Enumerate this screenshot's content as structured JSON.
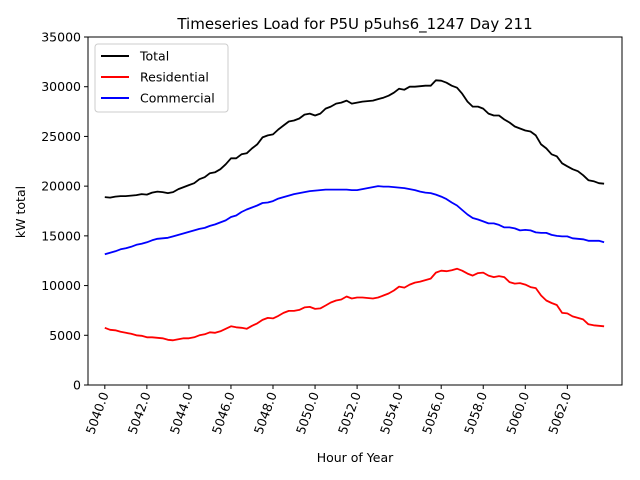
{
  "chart_data": {
    "type": "line",
    "title": "Timeseries Load for P5U p5uhs6_1247  Day 211",
    "xlabel": "Hour of Year",
    "ylabel": "kW total",
    "xlim": [
      5039.2,
      5064.6
    ],
    "ylim": [
      0,
      35000
    ],
    "xticks": [
      5040,
      5042,
      5044,
      5046,
      5048,
      5050,
      5052,
      5054,
      5056,
      5058,
      5060,
      5062
    ],
    "xtick_labels": [
      "5040.0",
      "5042.0",
      "5044.0",
      "5046.0",
      "5048.0",
      "5050.0",
      "5052.0",
      "5054.0",
      "5056.0",
      "5058.0",
      "5060.0",
      "5062.0"
    ],
    "yticks": [
      0,
      5000,
      10000,
      15000,
      20000,
      25000,
      30000,
      35000
    ],
    "ytick_labels": [
      "0",
      "5000",
      "10000",
      "15000",
      "20000",
      "25000",
      "30000",
      "35000"
    ],
    "grid": false,
    "legend_position": "top-left",
    "x": [
      5040.0,
      5040.25,
      5040.5,
      5040.75,
      5041.0,
      5041.25,
      5041.5,
      5041.75,
      5042.0,
      5042.25,
      5042.5,
      5042.75,
      5043.0,
      5043.25,
      5043.5,
      5043.75,
      5044.0,
      5044.25,
      5044.5,
      5044.75,
      5045.0,
      5045.25,
      5045.5,
      5045.75,
      5046.0,
      5046.25,
      5046.5,
      5046.75,
      5047.0,
      5047.25,
      5047.5,
      5047.75,
      5048.0,
      5048.25,
      5048.5,
      5048.75,
      5049.0,
      5049.25,
      5049.5,
      5049.75,
      5050.0,
      5050.25,
      5050.5,
      5050.75,
      5051.0,
      5051.25,
      5051.5,
      5051.75,
      5052.0,
      5052.25,
      5052.5,
      5052.75,
      5053.0,
      5053.25,
      5053.5,
      5053.75,
      5054.0,
      5054.25,
      5054.5,
      5054.75,
      5055.0,
      5055.25,
      5055.5,
      5055.75,
      5056.0,
      5056.25,
      5056.5,
      5056.75,
      5057.0,
      5057.25,
      5057.5,
      5057.75,
      5058.0,
      5058.25,
      5058.5,
      5058.75,
      5059.0,
      5059.25,
      5059.5,
      5059.75,
      5060.0,
      5060.25,
      5060.5,
      5060.75,
      5061.0,
      5061.25,
      5061.5,
      5061.75,
      5062.0,
      5062.25,
      5062.5,
      5062.75,
      5063.0,
      5063.25,
      5063.5,
      5063.75
    ],
    "series": [
      {
        "name": "Total",
        "color": "#000000",
        "values": [
          18900,
          18850,
          18950,
          19000,
          19000,
          19050,
          19100,
          19200,
          19150,
          19350,
          19450,
          19400,
          19300,
          19400,
          19700,
          19900,
          20100,
          20300,
          20700,
          20900,
          21300,
          21400,
          21700,
          22200,
          22800,
          22800,
          23200,
          23300,
          23800,
          24200,
          24900,
          25100,
          25200,
          25700,
          26100,
          26500,
          26600,
          26800,
          27200,
          27300,
          27100,
          27300,
          27800,
          28000,
          28300,
          28400,
          28600,
          28300,
          28400,
          28500,
          28550,
          28600,
          28750,
          28900,
          29100,
          29400,
          29800,
          29700,
          30000,
          30000,
          30050,
          30100,
          30100,
          30650,
          30600,
          30400,
          30100,
          29900,
          29300,
          28500,
          28000,
          28000,
          27800,
          27300,
          27100,
          27100,
          26700,
          26400,
          26000,
          25800,
          25600,
          25500,
          25100,
          24200,
          23800,
          23200,
          23000,
          22300,
          22000,
          21700,
          21500,
          21100,
          20600,
          20500,
          20300,
          20250
        ]
      },
      {
        "name": "Residential",
        "color": "#ff0000",
        "values": [
          5750,
          5550,
          5500,
          5350,
          5250,
          5150,
          5000,
          4950,
          4800,
          4800,
          4750,
          4700,
          4550,
          4500,
          4600,
          4700,
          4700,
          4800,
          5000,
          5100,
          5300,
          5250,
          5400,
          5650,
          5900,
          5800,
          5750,
          5650,
          5950,
          6200,
          6550,
          6750,
          6700,
          6950,
          7250,
          7450,
          7450,
          7550,
          7800,
          7850,
          7650,
          7700,
          8000,
          8300,
          8500,
          8600,
          8900,
          8700,
          8800,
          8800,
          8750,
          8700,
          8800,
          9000,
          9200,
          9500,
          9900,
          9800,
          10100,
          10300,
          10400,
          10550,
          10700,
          11300,
          11500,
          11450,
          11550,
          11700,
          11500,
          11200,
          11000,
          11250,
          11300,
          11000,
          10850,
          10950,
          10850,
          10350,
          10200,
          10250,
          10100,
          9850,
          9750,
          9000,
          8500,
          8250,
          8050,
          7250,
          7200,
          6900,
          6750,
          6600,
          6100,
          6000,
          5950,
          5900
        ]
      },
      {
        "name": "Commercial",
        "color": "#0000ff",
        "values": [
          13150,
          13300,
          13450,
          13650,
          13750,
          13900,
          14100,
          14200,
          14350,
          14550,
          14700,
          14750,
          14800,
          14950,
          15100,
          15250,
          15400,
          15550,
          15700,
          15800,
          16000,
          16150,
          16350,
          16550,
          16900,
          17050,
          17400,
          17650,
          17850,
          18050,
          18300,
          18350,
          18500,
          18750,
          18900,
          19050,
          19200,
          19300,
          19400,
          19500,
          19550,
          19600,
          19650,
          19650,
          19650,
          19650,
          19650,
          19600,
          19600,
          19700,
          19800,
          19900,
          20000,
          19950,
          19950,
          19900,
          19850,
          19800,
          19700,
          19600,
          19450,
          19350,
          19300,
          19150,
          18950,
          18700,
          18350,
          18050,
          17600,
          17150,
          16800,
          16650,
          16450,
          16250,
          16250,
          16100,
          15850,
          15850,
          15750,
          15550,
          15600,
          15550,
          15350,
          15300,
          15300,
          15100,
          15000,
          14950,
          14950,
          14750,
          14700,
          14650,
          14500,
          14500,
          14500,
          14350
        ]
      }
    ]
  }
}
